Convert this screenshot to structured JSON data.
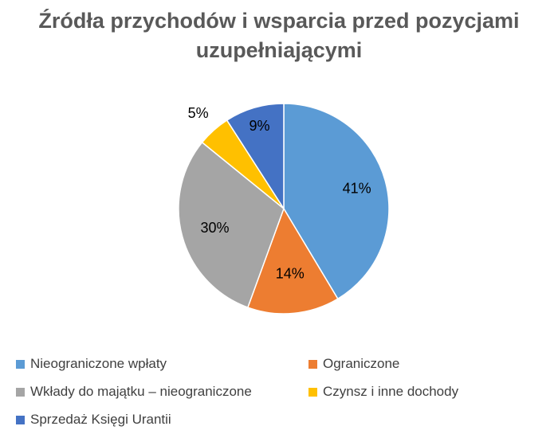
{
  "chart_data": {
    "type": "pie",
    "title": "Źródła przychodów i wsparcia przed pozycjami uzupełniającymi",
    "title_lines": [
      "Źródła przychodów i wsparcia przed pozycjami",
      "uzupełniającymi"
    ],
    "slices": [
      {
        "label": "Nieograniczone wpłaty",
        "value": 41,
        "display": "41%",
        "color": "#5B9BD5"
      },
      {
        "label": "Ograniczone",
        "value": 14,
        "display": "14%",
        "color": "#ED7D31"
      },
      {
        "label": "Wkłady do majątku – nieograniczone",
        "value": 30,
        "display": "30%",
        "color": "#A5A5A5"
      },
      {
        "label": "Czynsz i inne dochody",
        "value": 5,
        "display": "5%",
        "color": "#FFC000"
      },
      {
        "label": "Sprzedaż Księgi Urantii",
        "value": 9,
        "display": "9%",
        "color": "#4472C4"
      }
    ],
    "start_angle": "12 o'clock",
    "direction": "clockwise",
    "legend_position": "bottom"
  }
}
